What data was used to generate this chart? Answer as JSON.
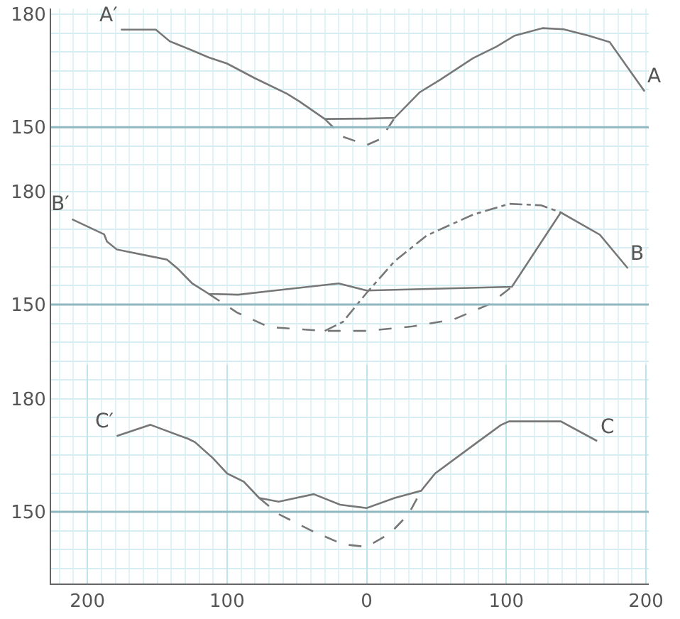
{
  "chart_data": [
    {
      "type": "line",
      "xlim": [
        -226,
        202
      ],
      "ylim": [
        135,
        181.5
      ],
      "yticks": [
        150,
        180
      ],
      "tick_labels": "y",
      "grid": true,
      "marker": "none",
      "series": [
        {
          "color": "#777777",
          "line_style": "solid",
          "x": [
            -176,
            -151,
            -141,
            -125,
            -113,
            -100,
            -80,
            -57,
            -48,
            -30,
            0,
            20,
            38,
            53,
            76,
            93,
            106,
            126,
            141,
            159,
            174,
            199
          ],
          "values": [
            175.9,
            175.9,
            172.8,
            170.4,
            168.5,
            166.9,
            163,
            158.9,
            156.8,
            152.2,
            152.3,
            152.5,
            159.3,
            162.7,
            168.3,
            171.4,
            174.3,
            176.3,
            176,
            174.3,
            172.6,
            159.5
          ]
        },
        {
          "color": "#777777",
          "line_style": "dashed",
          "x": [
            -30,
            -17,
            0,
            10,
            20
          ],
          "values": [
            152.2,
            147.5,
            145.3,
            146.9,
            152.5
          ]
        }
      ],
      "ref_lines": [
        {
          "axis": "y",
          "value": 150,
          "color": "#8fb8c0"
        }
      ],
      "annotations": [
        "A′",
        "A"
      ]
    },
    {
      "type": "line",
      "xlim": [
        -226,
        202
      ],
      "ylim": [
        134,
        182
      ],
      "yticks": [
        150,
        180
      ],
      "tick_labels": "y",
      "grid": true,
      "marker": "none",
      "series": [
        {
          "color": "#777777",
          "line_style": "solid",
          "x": [
            -211,
            -188,
            -186,
            -179,
            -159,
            -143,
            -135,
            -125,
            -113,
            -92,
            -68,
            -20,
            0,
            104,
            139,
            167,
            187
          ],
          "values": [
            172.6,
            168.6,
            166.7,
            164.6,
            163.1,
            161.9,
            159.4,
            155.6,
            152.8,
            152.6,
            153.6,
            155.6,
            153.7,
            154.7,
            174.4,
            168.5,
            159.6
          ]
        },
        {
          "color": "#777777",
          "line_style": "dashed",
          "x": [
            -113,
            -93,
            -70,
            -30,
            0,
            33,
            62,
            88,
            104
          ],
          "values": [
            152.8,
            147.9,
            144,
            143,
            143,
            144.2,
            146,
            150.1,
            154.7
          ]
        },
        {
          "color": "#777777",
          "line_style": "dashdot",
          "x": [
            -30,
            -17,
            0,
            20,
            43,
            76,
            102,
            125,
            139
          ],
          "values": [
            143,
            145.4,
            153.1,
            161.5,
            168.3,
            173.8,
            176.7,
            176.3,
            174.4
          ]
        }
      ],
      "ref_lines": [
        {
          "axis": "y",
          "value": 150,
          "color": "#8fb8c0"
        }
      ],
      "annotations": [
        "B′",
        "B"
      ]
    },
    {
      "type": "line",
      "xlim": [
        -226,
        202
      ],
      "ylim": [
        131,
        189
      ],
      "yticks": [
        150,
        180
      ],
      "xticks": [
        {
          "value": -200,
          "label": "200"
        },
        {
          "value": -100,
          "label": "100"
        },
        0,
        100,
        200
      ],
      "grid": true,
      "marker": "none",
      "series": [
        {
          "color": "#777777",
          "line_style": "solid",
          "x": [
            -179,
            -155,
            -128,
            -123,
            -110,
            -100,
            -88,
            -77,
            -63,
            -38,
            -19,
            0,
            20,
            39,
            49,
            79,
            96,
            102,
            139,
            165
          ],
          "values": [
            170.1,
            173.1,
            169.4,
            168.5,
            164.2,
            160.2,
            158,
            153.7,
            152.7,
            154.7,
            151.9,
            151,
            153.7,
            155.6,
            160.2,
            168.4,
            173,
            174,
            174,
            168.8
          ]
        },
        {
          "color": "#777777",
          "line_style": "dashed",
          "x": [
            -77,
            -63,
            -40,
            -17,
            0,
            17,
            30,
            39
          ],
          "values": [
            153.7,
            149.4,
            145.1,
            141.4,
            140.7,
            144.4,
            149.4,
            155.6
          ]
        }
      ],
      "ref_lines": [
        {
          "axis": "y",
          "value": 150,
          "color": "#8fb8c0"
        }
      ],
      "annotations": [
        "C′",
        "C"
      ]
    }
  ]
}
